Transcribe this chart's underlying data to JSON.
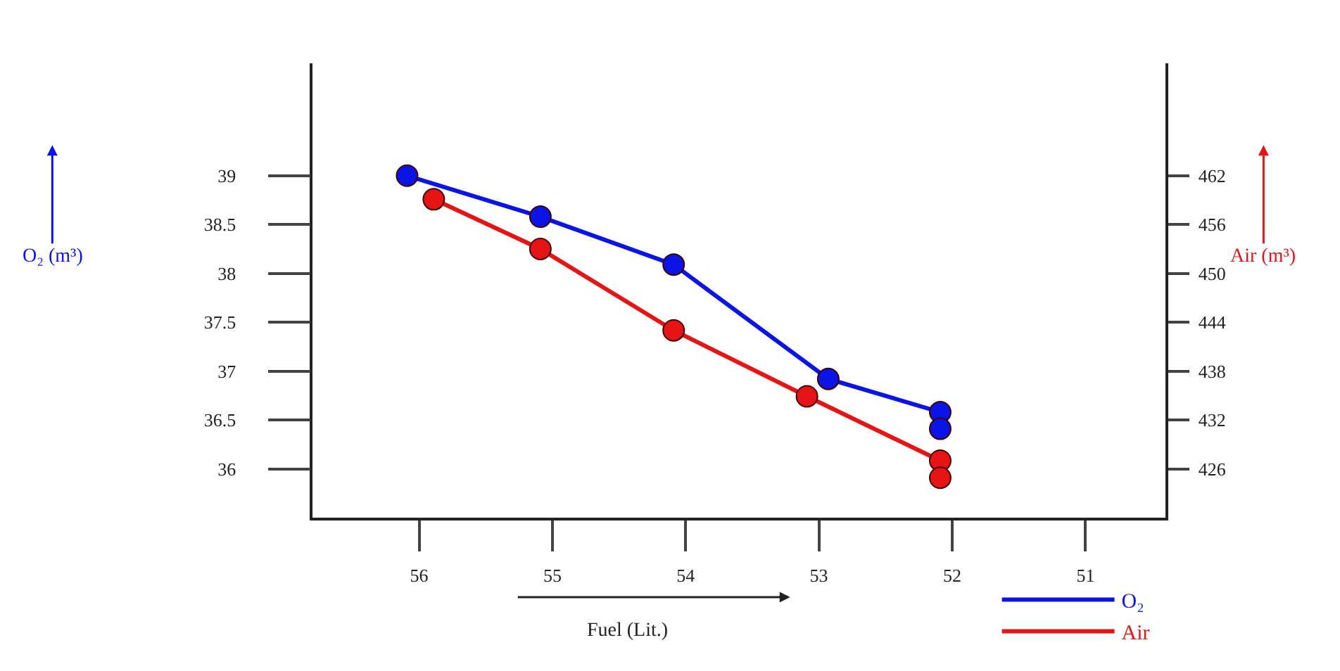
{
  "chart_data": {
    "type": "line",
    "xlabel": "Fuel (Lit.)",
    "annotations": [
      "O₂ (m³)",
      "Air (m³)"
    ],
    "xlim": [
      56.8,
      50.4
    ],
    "xticks": [
      56,
      55,
      54,
      53,
      52,
      51
    ],
    "ylim": [
      35.5,
      40.15
    ],
    "yticks": [
      36,
      36.5,
      37,
      37.5,
      38,
      38.5,
      39
    ],
    "y2lim": [
      420,
      475.8
    ],
    "y2ticks": [
      426,
      432,
      438,
      444,
      450,
      456,
      462
    ],
    "marker": "circle",
    "line_style": "solid",
    "legend": "bottom right",
    "series": [
      {
        "name": "O₂",
        "color": "#0a14e6",
        "x": [
          56.09,
          55.09,
          54.09,
          52.93,
          52.09,
          52.09
        ],
        "values": [
          39.0,
          38.58,
          38.09,
          36.92,
          36.58,
          36.41
        ]
      },
      {
        "name": "Air",
        "color": "#e61414",
        "axis": "y2",
        "x": [
          55.89,
          55.09,
          54.09,
          53.09,
          52.09,
          52.09
        ],
        "values": [
          459.1,
          453.0,
          443.0,
          434.9,
          427.0,
          424.9
        ]
      }
    ]
  }
}
